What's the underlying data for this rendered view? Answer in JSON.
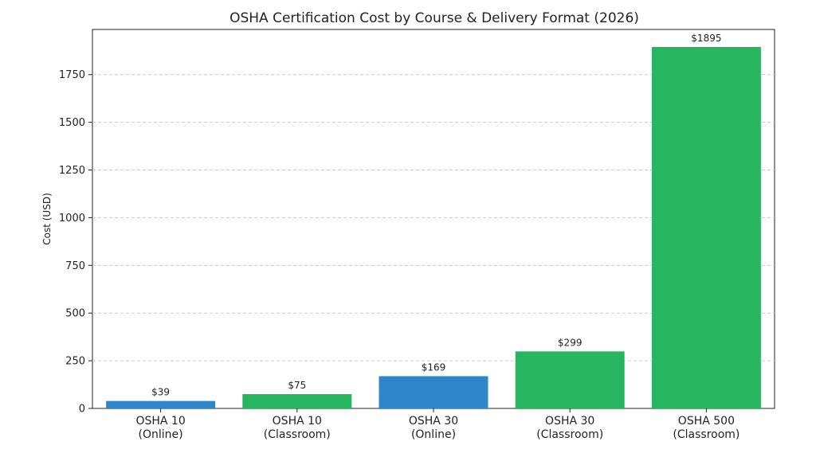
{
  "chart_data": {
    "type": "bar",
    "title": "OSHA Certification Cost by Course & Delivery Format (2026)",
    "xlabel": "",
    "ylabel": "Cost (USD)",
    "ylim": [
      0,
      1895
    ],
    "yticks": [
      0,
      250,
      500,
      750,
      1000,
      1250,
      1500,
      1750
    ],
    "grid": true,
    "categories": [
      [
        "OSHA 10",
        "(Online)"
      ],
      [
        "OSHA 10",
        "(Classroom)"
      ],
      [
        "OSHA 30",
        "(Online)"
      ],
      [
        "OSHA 30",
        "(Classroom)"
      ],
      [
        "OSHA 500",
        "(Classroom)"
      ]
    ],
    "values": [
      39,
      75,
      169,
      299,
      1895
    ],
    "data_labels": [
      "$39",
      "$75",
      "$169",
      "$299",
      "$1895"
    ],
    "bar_colors": [
      "#2e86c9",
      "#27b562",
      "#2e86c9",
      "#27b562",
      "#27b562"
    ]
  }
}
